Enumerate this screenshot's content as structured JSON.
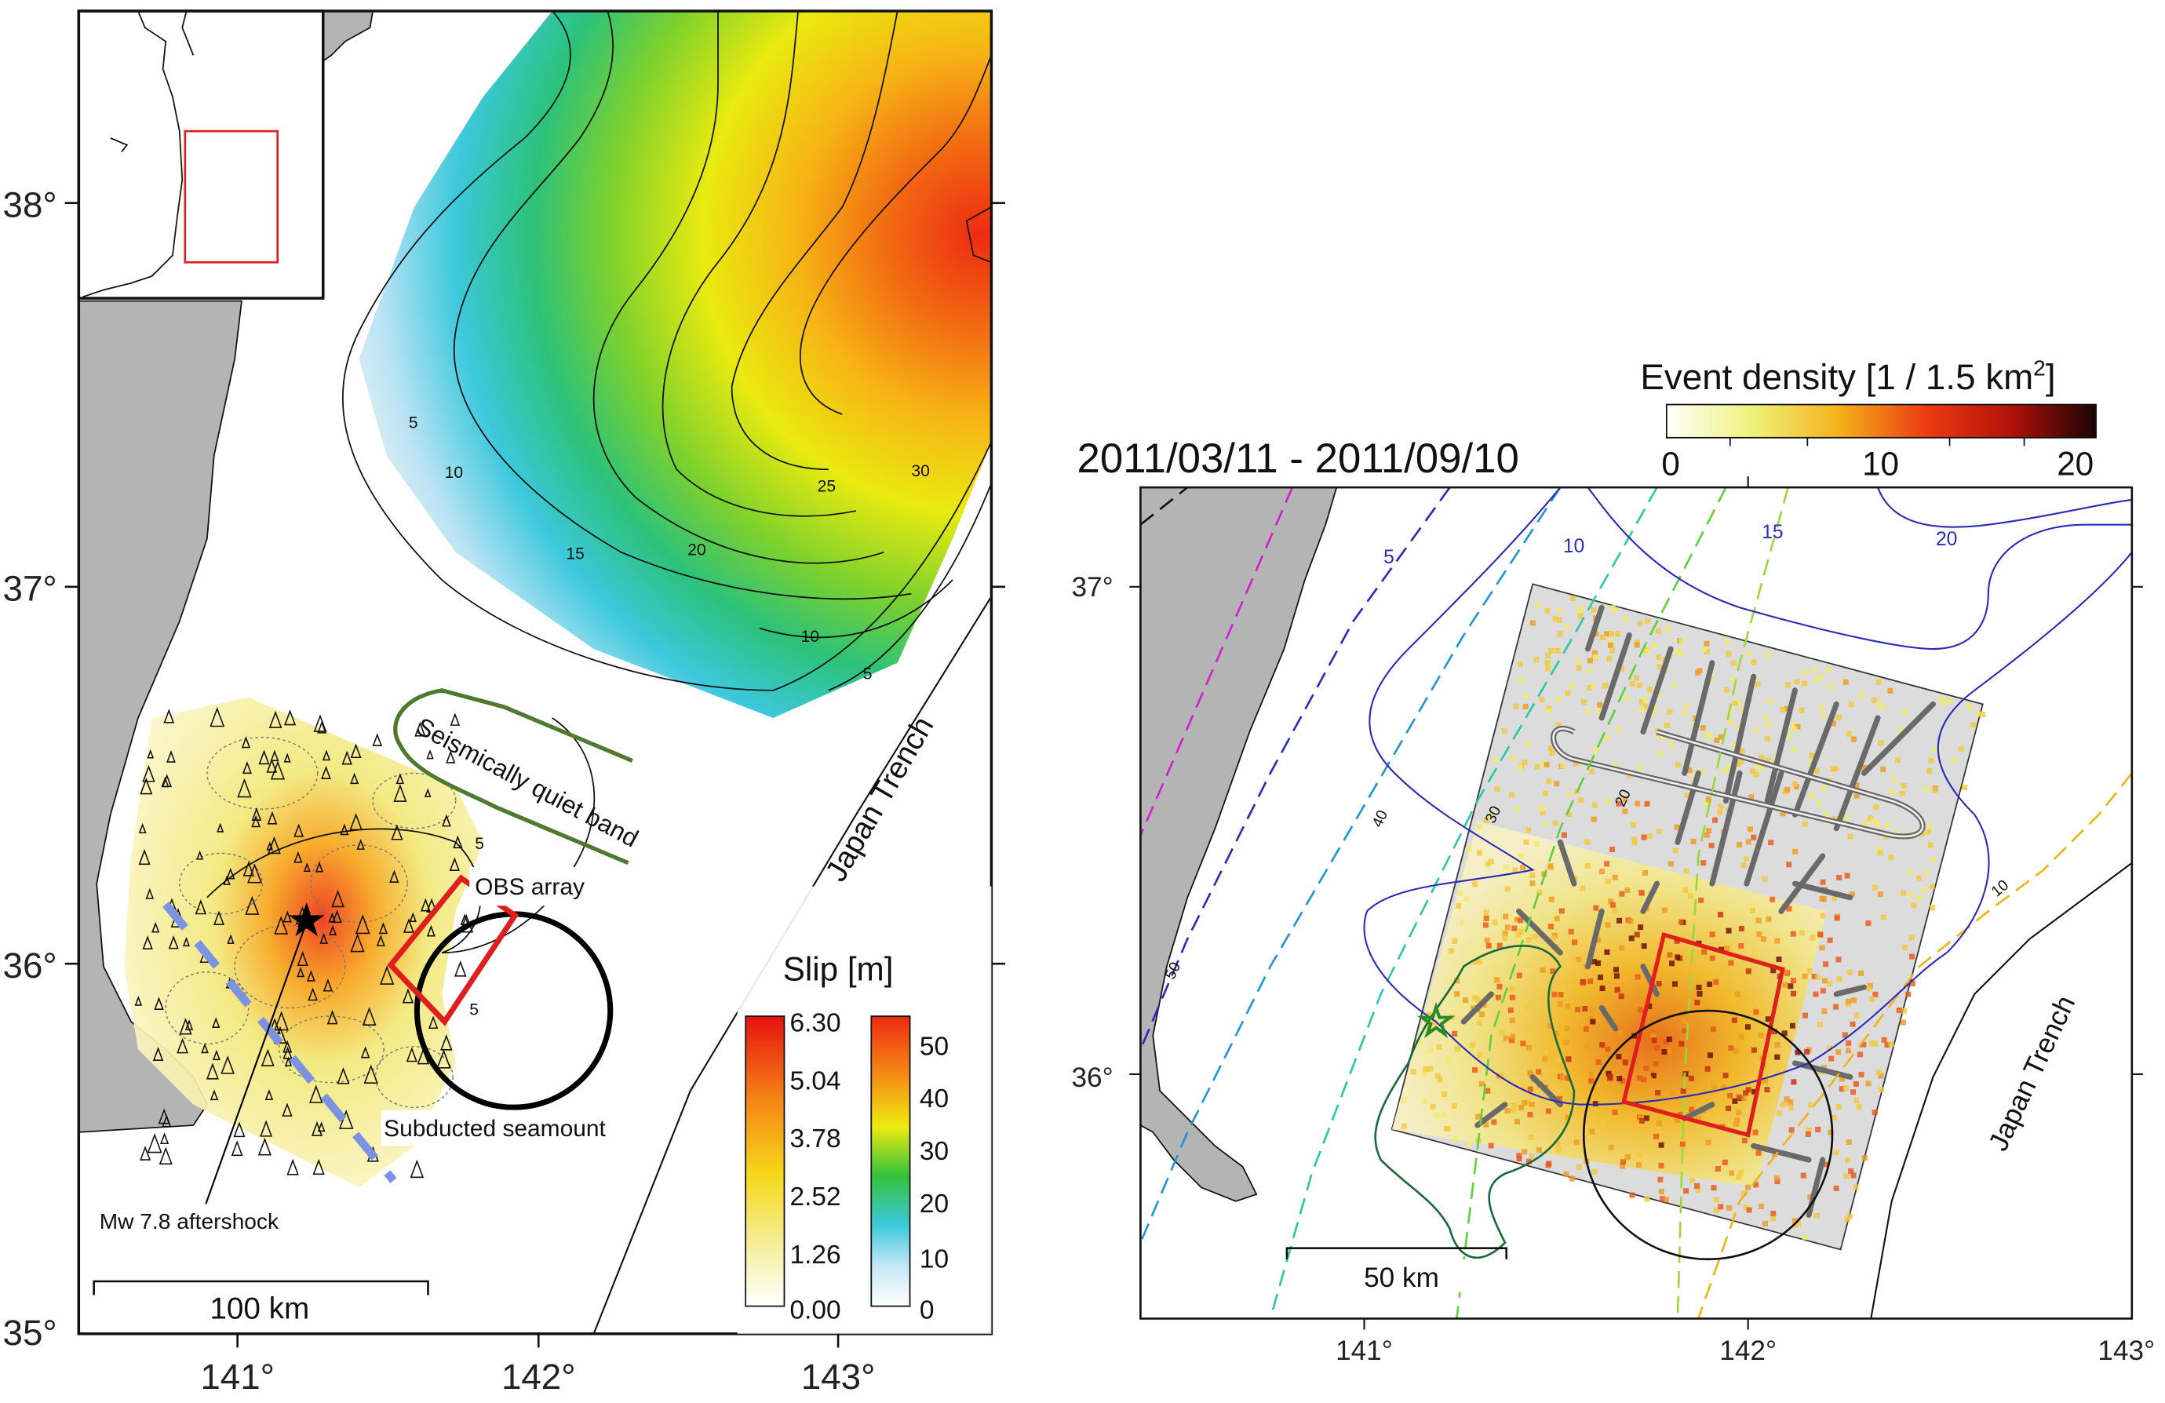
{
  "left_map": {
    "lat_ticks": [
      "38°",
      "37°",
      "36°",
      "35°"
    ],
    "lon_ticks": [
      "141°",
      "142°",
      "143°"
    ],
    "labels": {
      "trench": "Japan Trench",
      "quiet_band": "Seismically quiet band",
      "obs_array": "OBS array",
      "seamount": "Subducted seamount",
      "aftershock": "Mw 7.8 aftershock",
      "scalebar": "100 km"
    },
    "contour_labels": [
      "5",
      "10",
      "15",
      "20",
      "25",
      "30",
      "10",
      "5",
      "5",
      "5"
    ],
    "slip_legend": {
      "title": "Slip [m]",
      "left_ticks": [
        "6.30",
        "5.04",
        "3.78",
        "2.52",
        "1.26",
        "0.00"
      ],
      "right_ticks": [
        "50",
        "40",
        "30",
        "20",
        "10",
        "0"
      ]
    }
  },
  "right_map": {
    "period": "2011/03/11 - 2011/09/10",
    "lat_ticks": [
      "37°",
      "36°"
    ],
    "lon_ticks": [
      "141°",
      "142°",
      "143°"
    ],
    "density_legend": {
      "title": "Event density [1 / 1.5 km",
      "title_sup": "2",
      "title_end": "]",
      "ticks": [
        "0",
        "10",
        "20"
      ]
    },
    "contour_labels": [
      "5",
      "10",
      "15",
      "20",
      "10",
      "20",
      "30",
      "40",
      "50"
    ],
    "trench": "Japan Trench",
    "scalebar": "50 km"
  },
  "colors": {
    "land": "#b4b4b4",
    "red_box": "#e01e1e",
    "seamount_circle": "#000000",
    "quiet_band": "#4f7a2e",
    "aftershock_line": "#7b93e0"
  }
}
